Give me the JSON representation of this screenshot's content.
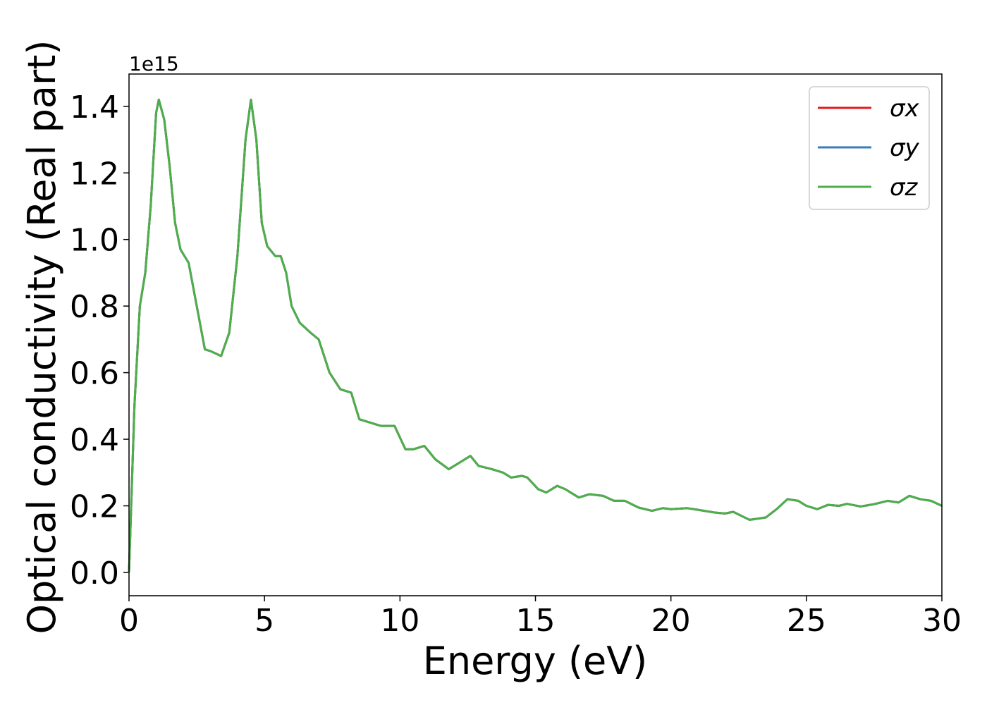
{
  "chart_data": {
    "type": "line",
    "x_label": "Energy (eV)",
    "y_label": "Optical conductivity (Real part)",
    "y_offset_label": "1e15",
    "xlim": [
      0,
      30
    ],
    "ylim": [
      -0.07,
      1.497
    ],
    "xticks": [
      0,
      5,
      10,
      15,
      20,
      25,
      30
    ],
    "yticks": [
      {
        "value": 0,
        "label": "0.0"
      },
      0.2,
      0.4,
      0.6,
      0.8,
      {
        "value": 1,
        "label": "1.0"
      },
      1.2,
      1.4
    ],
    "legend": "upper right",
    "x": [
      0,
      0.2,
      0.4,
      0.6,
      0.8,
      1.0,
      1.1,
      1.3,
      1.5,
      1.7,
      1.9,
      2.2,
      2.5,
      2.8,
      3.0,
      3.4,
      3.7,
      4.0,
      4.3,
      4.5,
      4.7,
      4.9,
      5.1,
      5.4,
      5.6,
      5.8,
      6.0,
      6.3,
      6.7,
      7.0,
      7.4,
      7.8,
      8.2,
      8.5,
      8.9,
      9.3,
      9.8,
      10.2,
      10.5,
      10.9,
      11.3,
      11.8,
      12.2,
      12.6,
      12.9,
      13.4,
      13.8,
      14.1,
      14.5,
      14.7,
      15.1,
      15.4,
      15.8,
      16.1,
      16.6,
      17.0,
      17.5,
      17.9,
      18.3,
      18.8,
      19.3,
      19.7,
      20.0,
      20.6,
      21.0,
      21.6,
      22.0,
      22.3,
      22.6,
      22.9,
      23.5,
      23.9,
      24.3,
      24.7,
      25.0,
      25.4,
      25.8,
      26.2,
      26.5,
      27.0,
      27.5,
      28.0,
      28.4,
      28.8,
      29.2,
      29.6,
      30.0
    ],
    "series": [
      {
        "name": "σx",
        "color": "#e41a1c",
        "values": [
          0.0,
          0.5,
          0.8,
          0.9,
          1.1,
          1.38,
          1.42,
          1.36,
          1.22,
          1.05,
          0.97,
          0.93,
          0.8,
          0.67,
          0.665,
          0.65,
          0.72,
          0.95,
          1.3,
          1.42,
          1.3,
          1.05,
          0.98,
          0.95,
          0.95,
          0.9,
          0.8,
          0.75,
          0.72,
          0.7,
          0.6,
          0.55,
          0.54,
          0.46,
          0.45,
          0.44,
          0.44,
          0.37,
          0.37,
          0.38,
          0.34,
          0.31,
          0.33,
          0.35,
          0.32,
          0.31,
          0.3,
          0.285,
          0.29,
          0.285,
          0.25,
          0.24,
          0.26,
          0.25,
          0.225,
          0.235,
          0.23,
          0.215,
          0.215,
          0.195,
          0.185,
          0.193,
          0.19,
          0.193,
          0.188,
          0.18,
          0.177,
          0.182,
          0.17,
          0.158,
          0.165,
          0.19,
          0.22,
          0.215,
          0.2,
          0.19,
          0.203,
          0.2,
          0.206,
          0.198,
          0.205,
          0.215,
          0.21,
          0.23,
          0.22,
          0.215,
          0.2
        ]
      },
      {
        "name": "σy",
        "color": "#377eb8",
        "values": [
          0.0,
          0.5,
          0.8,
          0.9,
          1.1,
          1.38,
          1.42,
          1.36,
          1.22,
          1.05,
          0.97,
          0.93,
          0.8,
          0.67,
          0.665,
          0.65,
          0.72,
          0.95,
          1.3,
          1.42,
          1.3,
          1.05,
          0.98,
          0.95,
          0.95,
          0.9,
          0.8,
          0.75,
          0.72,
          0.7,
          0.6,
          0.55,
          0.54,
          0.46,
          0.45,
          0.44,
          0.44,
          0.37,
          0.37,
          0.38,
          0.34,
          0.31,
          0.33,
          0.35,
          0.32,
          0.31,
          0.3,
          0.285,
          0.29,
          0.285,
          0.25,
          0.24,
          0.26,
          0.25,
          0.225,
          0.235,
          0.23,
          0.215,
          0.215,
          0.195,
          0.185,
          0.193,
          0.19,
          0.193,
          0.188,
          0.18,
          0.177,
          0.182,
          0.17,
          0.158,
          0.165,
          0.19,
          0.22,
          0.215,
          0.2,
          0.19,
          0.203,
          0.2,
          0.206,
          0.198,
          0.205,
          0.215,
          0.21,
          0.23,
          0.22,
          0.215,
          0.2
        ]
      },
      {
        "name": "σz",
        "color": "#4daf4a",
        "values": [
          0.0,
          0.5,
          0.8,
          0.9,
          1.1,
          1.38,
          1.42,
          1.36,
          1.22,
          1.05,
          0.97,
          0.93,
          0.8,
          0.67,
          0.665,
          0.65,
          0.72,
          0.95,
          1.3,
          1.42,
          1.3,
          1.05,
          0.98,
          0.95,
          0.95,
          0.9,
          0.8,
          0.75,
          0.72,
          0.7,
          0.6,
          0.55,
          0.54,
          0.46,
          0.45,
          0.44,
          0.44,
          0.37,
          0.37,
          0.38,
          0.34,
          0.31,
          0.33,
          0.35,
          0.32,
          0.31,
          0.3,
          0.285,
          0.29,
          0.285,
          0.25,
          0.24,
          0.26,
          0.25,
          0.225,
          0.235,
          0.23,
          0.215,
          0.215,
          0.195,
          0.185,
          0.193,
          0.19,
          0.193,
          0.188,
          0.18,
          0.177,
          0.182,
          0.17,
          0.158,
          0.165,
          0.19,
          0.22,
          0.215,
          0.2,
          0.19,
          0.203,
          0.2,
          0.206,
          0.198,
          0.205,
          0.215,
          0.21,
          0.23,
          0.22,
          0.215,
          0.2
        ]
      }
    ]
  }
}
